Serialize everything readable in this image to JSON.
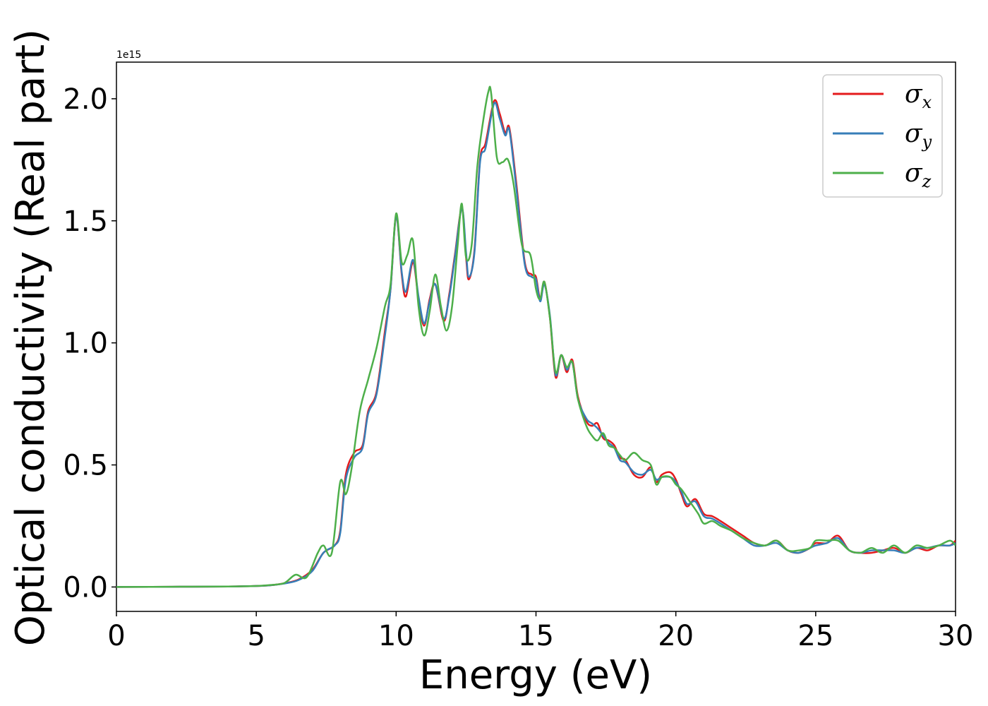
{
  "chart_data": {
    "type": "line",
    "xlabel": "Energy (eV)",
    "ylabel": "Optical conductivity (Real part)",
    "y_offset_label": "1e15",
    "y_scale": 1000000000000000.0,
    "xlim": [
      0,
      30
    ],
    "ylim": [
      -0.1,
      2.15
    ],
    "x_ticks": [
      0,
      5,
      10,
      15,
      20,
      25,
      30
    ],
    "x_tick_labels": [
      "0",
      "5",
      "10",
      "15",
      "20",
      "25",
      "30"
    ],
    "y_ticks": [
      0.0,
      0.5,
      1.0,
      1.5,
      2.0
    ],
    "y_tick_labels": [
      "0.0",
      "0.5",
      "1.0",
      "1.5",
      "2.0"
    ],
    "grid": false,
    "legend_position": "top-right",
    "series": [
      {
        "name": "σx",
        "legend_symbol": "σ",
        "legend_sub": "x",
        "color": "#e41a1c",
        "x": [
          0,
          2,
          4,
          5,
          5.5,
          6,
          6.5,
          7,
          7.4,
          7.8,
          8.0,
          8.2,
          8.5,
          8.8,
          9.0,
          9.3,
          9.6,
          9.8,
          10.0,
          10.2,
          10.35,
          10.6,
          10.8,
          11.0,
          11.2,
          11.4,
          11.7,
          11.9,
          12.1,
          12.35,
          12.5,
          12.6,
          12.8,
          13.0,
          13.2,
          13.5,
          13.7,
          13.9,
          14.05,
          14.3,
          14.6,
          14.85,
          15.0,
          15.15,
          15.3,
          15.5,
          15.7,
          15.9,
          16.1,
          16.3,
          16.5,
          16.8,
          17.0,
          17.2,
          17.4,
          17.6,
          17.8,
          18.0,
          18.2,
          18.5,
          18.8,
          19.1,
          19.3,
          19.5,
          19.8,
          20.0,
          20.2,
          20.4,
          20.7,
          21.0,
          21.3,
          21.6,
          22.0,
          22.4,
          22.8,
          23.2,
          23.6,
          24.0,
          24.4,
          24.8,
          25.0,
          25.4,
          25.8,
          26.2,
          26.6,
          27.0,
          27.4,
          27.8,
          28.2,
          28.6,
          29.0,
          29.4,
          29.8,
          30.0
        ],
        "values": [
          0.0,
          0.001,
          0.002,
          0.004,
          0.007,
          0.015,
          0.03,
          0.07,
          0.14,
          0.17,
          0.23,
          0.46,
          0.55,
          0.58,
          0.72,
          0.8,
          1.05,
          1.22,
          1.52,
          1.28,
          1.19,
          1.33,
          1.18,
          1.07,
          1.18,
          1.24,
          1.09,
          1.2,
          1.36,
          1.55,
          1.35,
          1.26,
          1.38,
          1.75,
          1.82,
          1.99,
          1.94,
          1.86,
          1.88,
          1.65,
          1.33,
          1.28,
          1.27,
          1.18,
          1.25,
          1.1,
          0.86,
          0.95,
          0.88,
          0.93,
          0.78,
          0.68,
          0.66,
          0.67,
          0.61,
          0.6,
          0.58,
          0.53,
          0.52,
          0.46,
          0.45,
          0.49,
          0.43,
          0.46,
          0.47,
          0.44,
          0.38,
          0.33,
          0.36,
          0.3,
          0.29,
          0.27,
          0.24,
          0.21,
          0.18,
          0.17,
          0.19,
          0.15,
          0.14,
          0.16,
          0.18,
          0.18,
          0.21,
          0.15,
          0.14,
          0.14,
          0.15,
          0.16,
          0.14,
          0.16,
          0.15,
          0.17,
          0.17,
          0.19
        ]
      },
      {
        "name": "σy",
        "legend_symbol": "σ",
        "legend_sub": "y",
        "color": "#377eb8",
        "x": [
          0,
          2,
          4,
          5,
          5.5,
          6,
          6.5,
          7,
          7.4,
          7.8,
          8.0,
          8.2,
          8.5,
          8.8,
          9.0,
          9.3,
          9.6,
          9.8,
          10.0,
          10.2,
          10.35,
          10.6,
          10.8,
          11.0,
          11.2,
          11.4,
          11.7,
          11.9,
          12.1,
          12.35,
          12.5,
          12.6,
          12.8,
          13.0,
          13.2,
          13.5,
          13.7,
          13.9,
          14.05,
          14.3,
          14.6,
          14.85,
          15.0,
          15.15,
          15.3,
          15.5,
          15.7,
          15.9,
          16.1,
          16.3,
          16.5,
          16.8,
          17.0,
          17.2,
          17.4,
          17.6,
          17.8,
          18.0,
          18.2,
          18.5,
          18.8,
          19.1,
          19.3,
          19.5,
          19.8,
          20.0,
          20.2,
          20.4,
          20.7,
          21.0,
          21.3,
          21.6,
          22.0,
          22.4,
          22.8,
          23.2,
          23.6,
          24.0,
          24.4,
          24.8,
          25.0,
          25.4,
          25.8,
          26.2,
          26.6,
          27.0,
          27.4,
          27.8,
          28.2,
          28.6,
          29.0,
          29.4,
          29.8,
          30.0
        ],
        "values": [
          0.0,
          0.001,
          0.002,
          0.004,
          0.007,
          0.014,
          0.028,
          0.065,
          0.14,
          0.17,
          0.22,
          0.44,
          0.53,
          0.57,
          0.71,
          0.79,
          1.03,
          1.22,
          1.52,
          1.29,
          1.21,
          1.34,
          1.19,
          1.08,
          1.17,
          1.24,
          1.1,
          1.19,
          1.35,
          1.55,
          1.37,
          1.27,
          1.37,
          1.74,
          1.8,
          1.98,
          1.92,
          1.85,
          1.87,
          1.63,
          1.32,
          1.27,
          1.26,
          1.17,
          1.24,
          1.11,
          0.87,
          0.95,
          0.89,
          0.92,
          0.77,
          0.69,
          0.67,
          0.65,
          0.62,
          0.59,
          0.57,
          0.52,
          0.51,
          0.47,
          0.46,
          0.48,
          0.44,
          0.45,
          0.45,
          0.43,
          0.39,
          0.34,
          0.35,
          0.29,
          0.28,
          0.26,
          0.23,
          0.2,
          0.17,
          0.17,
          0.18,
          0.15,
          0.14,
          0.16,
          0.17,
          0.18,
          0.2,
          0.15,
          0.14,
          0.15,
          0.15,
          0.15,
          0.14,
          0.16,
          0.16,
          0.17,
          0.17,
          0.18
        ]
      },
      {
        "name": "σz",
        "legend_symbol": "σ",
        "legend_sub": "z",
        "color": "#4daf4a",
        "x": [
          0,
          2,
          4,
          5,
          5.5,
          6,
          6.4,
          6.8,
          7.2,
          7.4,
          7.7,
          8.0,
          8.2,
          8.4,
          8.7,
          9.0,
          9.3,
          9.6,
          9.8,
          10.0,
          10.2,
          10.4,
          10.6,
          10.8,
          11.0,
          11.2,
          11.4,
          11.6,
          11.8,
          12.0,
          12.2,
          12.35,
          12.5,
          12.7,
          12.9,
          13.1,
          13.3,
          13.4,
          13.6,
          13.8,
          14.0,
          14.2,
          14.5,
          14.8,
          15.0,
          15.15,
          15.3,
          15.5,
          15.7,
          15.9,
          16.1,
          16.3,
          16.5,
          16.8,
          17.0,
          17.2,
          17.4,
          17.6,
          17.8,
          18.0,
          18.2,
          18.5,
          18.8,
          19.1,
          19.3,
          19.5,
          19.8,
          20.0,
          20.2,
          20.5,
          20.8,
          21.0,
          21.3,
          21.6,
          22.0,
          22.4,
          22.8,
          23.2,
          23.6,
          24.0,
          24.4,
          24.8,
          25.0,
          25.4,
          25.8,
          26.2,
          26.6,
          27.0,
          27.4,
          27.8,
          28.2,
          28.6,
          29.0,
          29.4,
          29.8,
          30.0
        ],
        "values": [
          0.0,
          0.001,
          0.002,
          0.004,
          0.008,
          0.016,
          0.05,
          0.04,
          0.14,
          0.17,
          0.14,
          0.43,
          0.38,
          0.48,
          0.72,
          0.85,
          0.98,
          1.15,
          1.24,
          1.53,
          1.33,
          1.36,
          1.42,
          1.15,
          1.03,
          1.13,
          1.28,
          1.15,
          1.05,
          1.15,
          1.4,
          1.57,
          1.35,
          1.4,
          1.72,
          1.9,
          2.03,
          2.02,
          1.76,
          1.74,
          1.75,
          1.65,
          1.4,
          1.36,
          1.22,
          1.18,
          1.25,
          1.1,
          0.88,
          0.95,
          0.9,
          0.92,
          0.77,
          0.66,
          0.62,
          0.6,
          0.63,
          0.58,
          0.57,
          0.54,
          0.52,
          0.55,
          0.52,
          0.5,
          0.42,
          0.45,
          0.45,
          0.42,
          0.4,
          0.35,
          0.3,
          0.26,
          0.27,
          0.25,
          0.23,
          0.2,
          0.18,
          0.17,
          0.19,
          0.15,
          0.15,
          0.16,
          0.19,
          0.19,
          0.19,
          0.15,
          0.14,
          0.16,
          0.14,
          0.17,
          0.14,
          0.17,
          0.16,
          0.17,
          0.19,
          0.17
        ]
      }
    ]
  }
}
